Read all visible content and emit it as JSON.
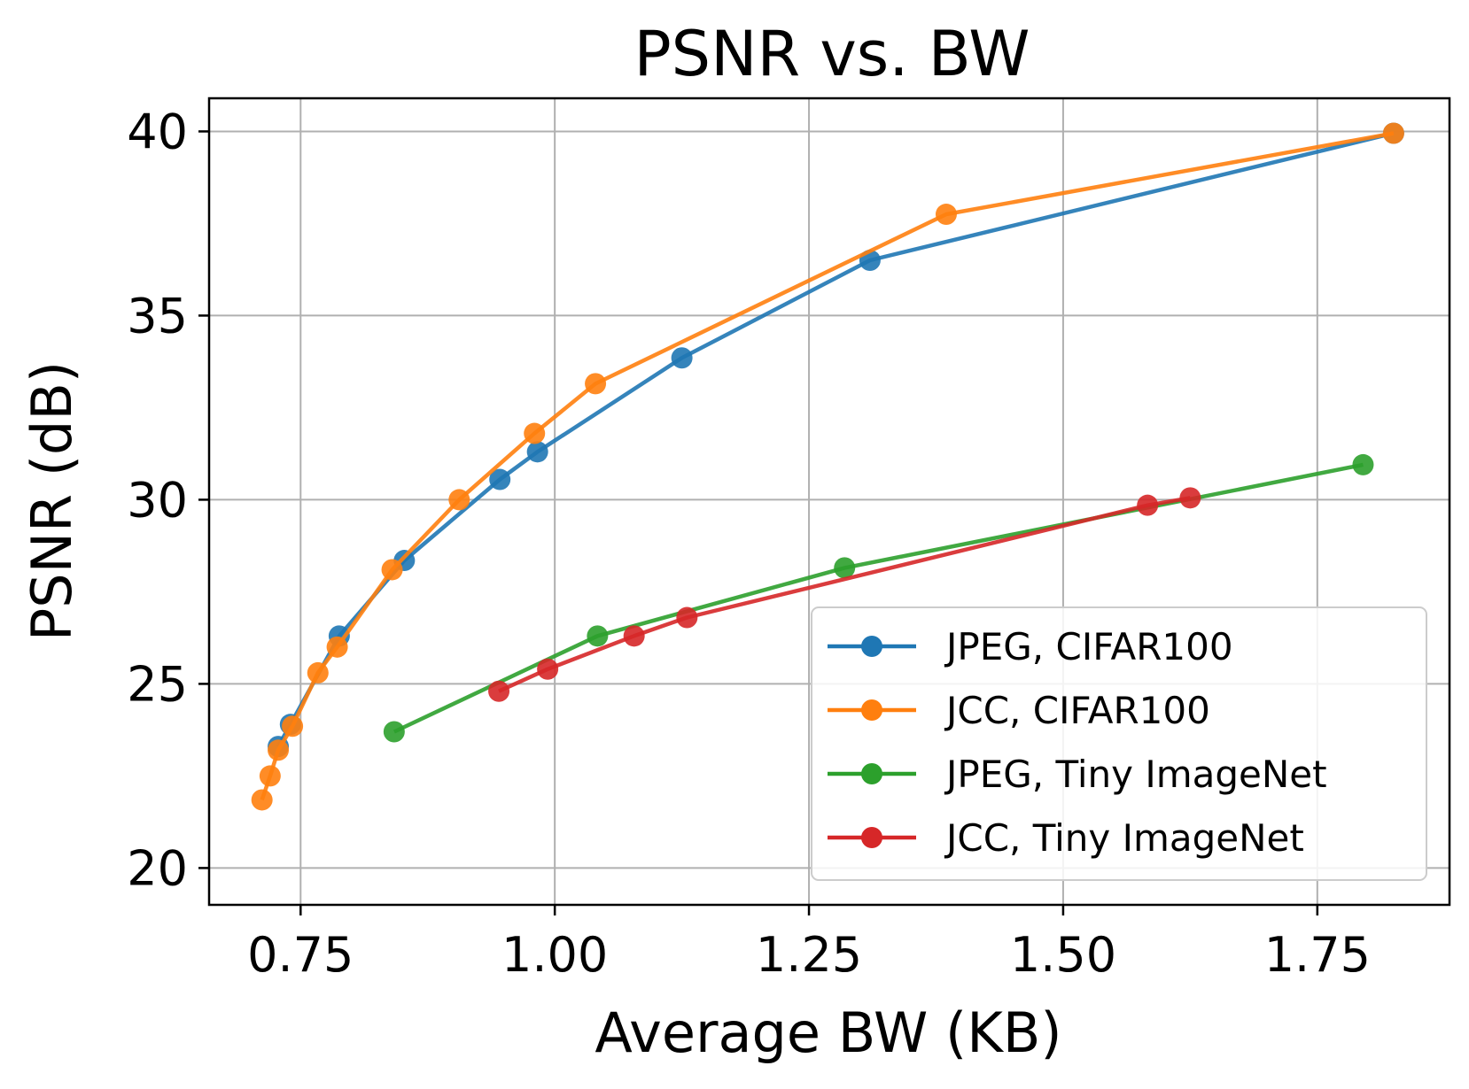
{
  "chart_data": {
    "type": "line",
    "title": "PSNR vs. BW",
    "xlabel": "Average BW (KB)",
    "ylabel": "PSNR (dB)",
    "xlim": [
      0.66,
      1.88
    ],
    "ylim": [
      19.0,
      40.9
    ],
    "xticks": [
      0.75,
      1.0,
      1.25,
      1.5,
      1.75
    ],
    "xtick_labels": [
      "0.75",
      "1.00",
      "1.25",
      "1.50",
      "1.75"
    ],
    "yticks": [
      20,
      25,
      30,
      35,
      40
    ],
    "ytick_labels": [
      "20",
      "25",
      "30",
      "35",
      "40"
    ],
    "grid": true,
    "legend_position": "lower-right",
    "series": [
      {
        "name": "JPEG, CIFAR100",
        "color": "#1f77b4",
        "x": [
          0.728,
          0.74,
          0.788,
          0.852,
          0.946,
          0.983,
          1.125,
          1.31,
          1.825
        ],
        "y": [
          23.3,
          23.9,
          26.3,
          28.35,
          30.55,
          31.3,
          33.85,
          36.5,
          39.95
        ]
      },
      {
        "name": "JCC, CIFAR100",
        "color": "#ff7f0e",
        "x": [
          0.712,
          0.72,
          0.728,
          0.742,
          0.767,
          0.786,
          0.84,
          0.906,
          0.98,
          1.04,
          1.385,
          1.825
        ],
        "y": [
          21.85,
          22.5,
          23.2,
          23.85,
          25.3,
          26.0,
          28.1,
          30.0,
          31.8,
          33.15,
          37.75,
          39.95
        ]
      },
      {
        "name": "JPEG, Tiny ImageNet",
        "color": "#2ca02c",
        "x": [
          0.842,
          1.042,
          1.285,
          1.795
        ],
        "y": [
          23.7,
          26.3,
          28.15,
          30.95
        ]
      },
      {
        "name": "JCC, Tiny ImageNet",
        "color": "#d62728",
        "x": [
          0.945,
          0.993,
          1.078,
          1.13,
          1.583,
          1.625
        ],
        "y": [
          24.8,
          25.4,
          26.3,
          26.8,
          29.85,
          30.05
        ]
      }
    ]
  }
}
